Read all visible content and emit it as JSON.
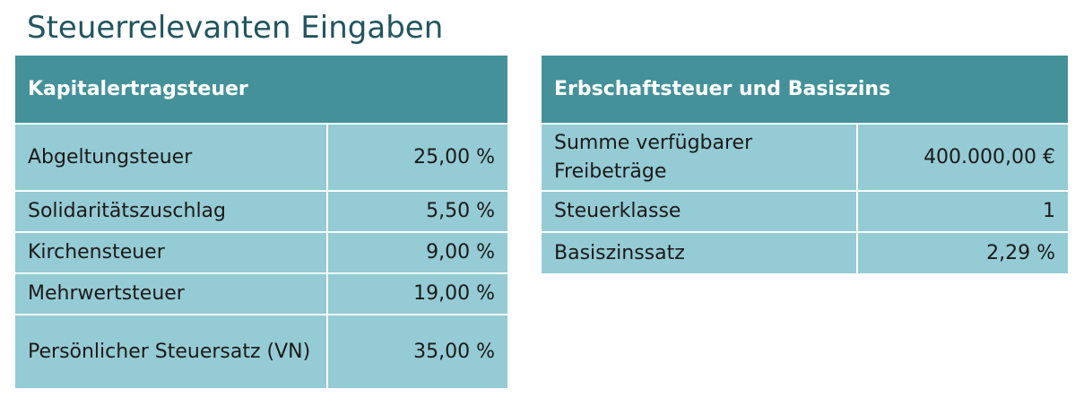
{
  "title": "Steuerrelevanten Eingaben",
  "kapitalertrag": {
    "heading": "Kapitalertragsteuer",
    "rows": [
      {
        "label": "Abgeltungsteuer",
        "value": "25,00 %"
      },
      {
        "label": "Solidaritätszuschlag",
        "value": "5,50 %"
      },
      {
        "label": "Kirchensteuer",
        "value": "9,00 %"
      },
      {
        "label": "Mehrwertsteuer",
        "value": "19,00 %"
      },
      {
        "label": "Persönlicher Steuersatz (VN)",
        "value": "35,00 %"
      }
    ]
  },
  "erbschaft": {
    "heading": "Erbschaftsteuer und Basiszins",
    "rows": [
      {
        "label": "Summe verfügbarer Freibeträge",
        "value": "400.000,00 €"
      },
      {
        "label": "Steuerklasse",
        "value": "1"
      },
      {
        "label": "Basiszinssatz",
        "value": "2,29 %"
      }
    ]
  },
  "colors": {
    "title": "#22555f",
    "header_bg": "#44919a",
    "cell_bg": "#95cbd4"
  }
}
